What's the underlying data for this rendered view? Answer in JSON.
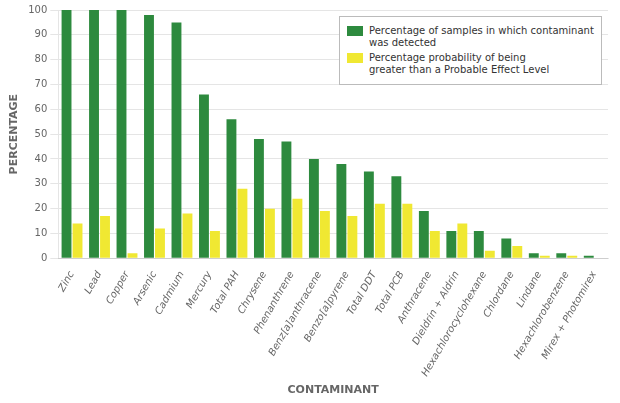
{
  "chart_data": {
    "type": "bar",
    "categories": [
      "Zinc",
      "Lead",
      "Copper",
      "Arsenic",
      "Cadmium",
      "Mercury",
      "Total PAH",
      "Chrysene",
      "Phenanthrene",
      "Benz[a]anthracene",
      "Benzo[a]pyrene",
      "Total DDT",
      "Total PCB",
      "Anthracene",
      "Dieldrin + Aldrin",
      "Hexachlorocyclohexane",
      "Chlordane",
      "Lindane",
      "Hexachlorobenzene",
      "Mirex + Photomirex"
    ],
    "series": [
      {
        "name": "Percentage of samples in which contaminant\nwas detected",
        "color": "#2d8a3e",
        "values": [
          100,
          100,
          100,
          98,
          95,
          66,
          56,
          48,
          47,
          40,
          38,
          35,
          33,
          19,
          11,
          11,
          8,
          2,
          2,
          1
        ]
      },
      {
        "name": "Percentage probability of being\ngreater than a Probable Effect Level",
        "color": "#f0e832",
        "values": [
          14,
          17,
          2,
          12,
          18,
          11,
          28,
          20,
          24,
          19,
          17,
          22,
          22,
          11,
          14,
          3,
          5,
          1,
          1,
          0
        ]
      }
    ],
    "xlabel": "CONTAMINANT",
    "ylabel": "PERCENTAGE",
    "ylim": [
      0,
      100
    ],
    "yticks": [
      0,
      10,
      20,
      30,
      40,
      50,
      60,
      70,
      80,
      90,
      100
    ],
    "grid": true,
    "legend": "upper right"
  }
}
